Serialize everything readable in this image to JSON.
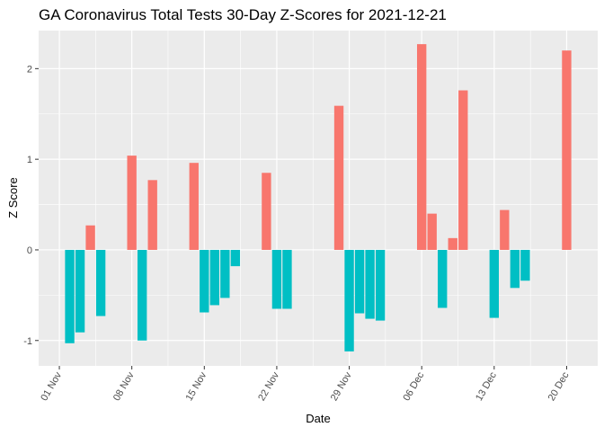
{
  "chart_data": {
    "type": "bar",
    "title": "GA Coronavirus Total Tests 30-Day Z-Scores for 2021-12-21",
    "xlabel": "Date",
    "ylabel": "Z Score",
    "x_range": [
      "2021-10-30",
      "2021-12-23"
    ],
    "ylim": [
      -1.28,
      2.42
    ],
    "y_ticks": [
      -1,
      0,
      1,
      2
    ],
    "x_ticks": [
      {
        "date": "2021-11-01",
        "label": "01 Nov"
      },
      {
        "date": "2021-11-08",
        "label": "08 Nov"
      },
      {
        "date": "2021-11-15",
        "label": "15 Nov"
      },
      {
        "date": "2021-11-22",
        "label": "22 Nov"
      },
      {
        "date": "2021-11-29",
        "label": "29 Nov"
      },
      {
        "date": "2021-12-06",
        "label": "06 Dec"
      },
      {
        "date": "2021-12-13",
        "label": "13 Dec"
      },
      {
        "date": "2021-12-20",
        "label": "20 Dec"
      }
    ],
    "grid": true,
    "legend": "none",
    "colors": {
      "positive": "#F8766D",
      "negative": "#00BFC4",
      "panel": "#EBEBEB",
      "grid": "#FFFFFF"
    },
    "x": [
      "2021-11-02",
      "2021-11-03",
      "2021-11-04",
      "2021-11-05",
      "2021-11-08",
      "2021-11-09",
      "2021-11-10",
      "2021-11-14",
      "2021-11-15",
      "2021-11-16",
      "2021-11-17",
      "2021-11-18",
      "2021-11-21",
      "2021-11-22",
      "2021-11-23",
      "2021-11-28",
      "2021-11-29",
      "2021-11-30",
      "2021-12-01",
      "2021-12-02",
      "2021-12-06",
      "2021-12-07",
      "2021-12-08",
      "2021-12-09",
      "2021-12-10",
      "2021-12-13",
      "2021-12-14",
      "2021-12-15",
      "2021-12-16",
      "2021-12-20"
    ],
    "values": [
      -1.03,
      -0.91,
      0.27,
      -0.73,
      1.04,
      -1.0,
      0.77,
      0.96,
      -0.69,
      -0.61,
      -0.53,
      -0.18,
      0.85,
      -0.65,
      -0.65,
      1.59,
      -1.12,
      -0.7,
      -0.76,
      -0.78,
      2.27,
      0.4,
      -0.64,
      0.13,
      1.76,
      -0.75,
      0.44,
      -0.42,
      -0.34,
      2.2
    ]
  }
}
